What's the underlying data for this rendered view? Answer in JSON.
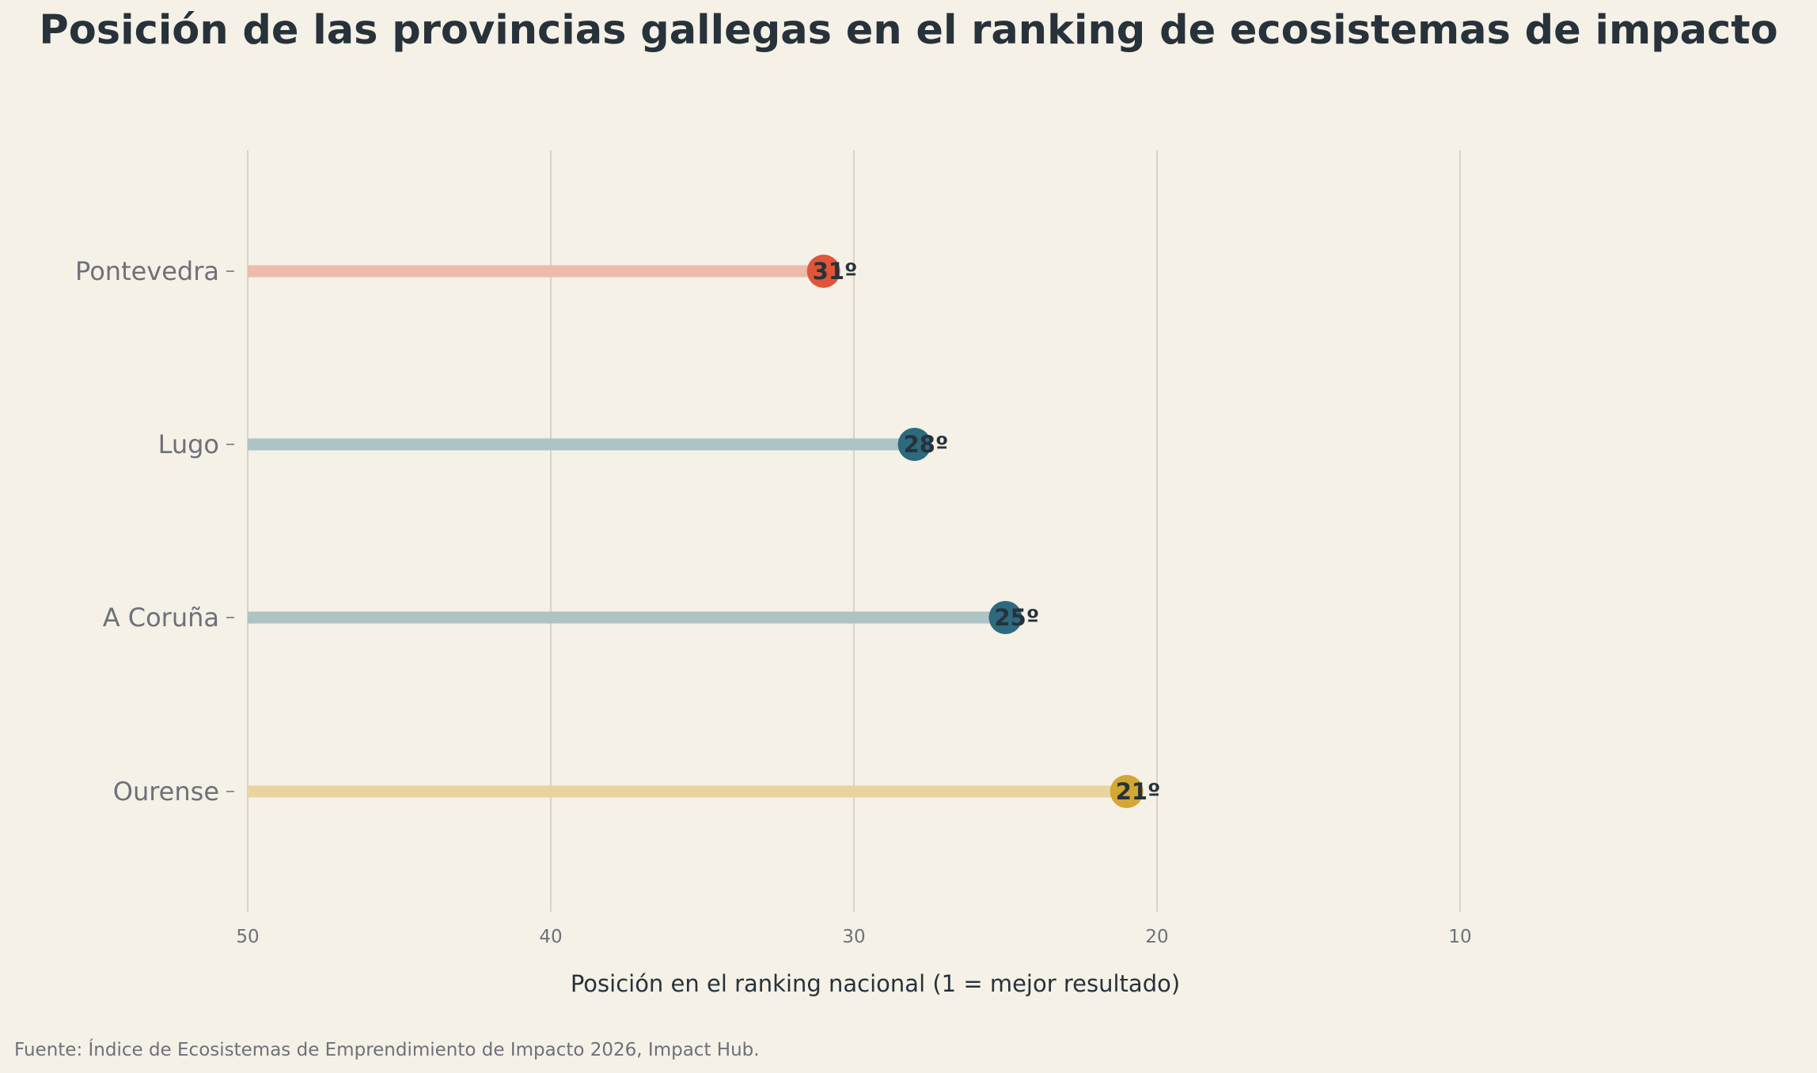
{
  "chart_data": {
    "type": "lollipop",
    "title": "Posición de las provincias gallegas en el ranking de ecosistemas de impacto",
    "xlabel": "Posición en el ranking nacional (1 = mejor resultado)",
    "ylabel": "",
    "x_reversed": true,
    "xlim": [
      50,
      1
    ],
    "x_ticks": [
      50,
      40,
      30,
      20,
      10
    ],
    "grid": "vertical",
    "categories": [
      "Pontevedra",
      "Lugo",
      "A Coruña",
      "Ourense"
    ],
    "values": [
      31,
      28,
      25,
      21
    ],
    "labels": [
      "31º",
      "28º",
      "25º",
      "21º"
    ],
    "colors": [
      "#e0553a",
      "#2d6a7e",
      "#2d6a7e",
      "#d3a733"
    ],
    "stem_colors": [
      "#ecbba9",
      "#adc3c4",
      "#adc3c4",
      "#e9d4a1"
    ],
    "source": "Fuente: Índice de Ecosistemas de Emprendimiento de Impacto 2026, Impact Hub."
  }
}
